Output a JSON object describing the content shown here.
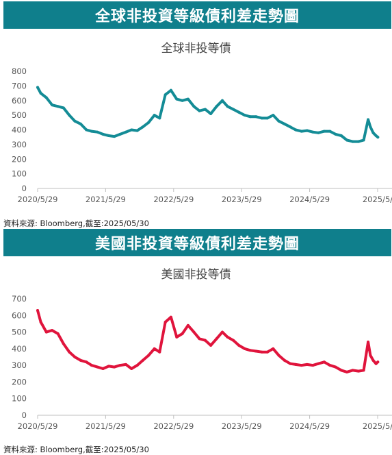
{
  "panels": [
    {
      "banner": "全球非投資等級債利差走勢圖",
      "source": "資料來源: Bloomberg,截至:2025/05/30",
      "chart_data": {
        "type": "line",
        "title": "全球非投等債",
        "xlabel": "",
        "ylabel": "",
        "ylim": [
          0,
          800
        ],
        "yticks": [
          0,
          100,
          200,
          300,
          400,
          500,
          600,
          700,
          800
        ],
        "grid": false,
        "legend": "none",
        "color": "#148c96",
        "xticklabels": [
          "2020/5/29",
          "2021/5/29",
          "2022/5/29",
          "2023/5/29",
          "2024/5/29",
          "2025/5/"
        ],
        "series": [
          {
            "x": [
              "2020-05-29",
              "2020-06-15",
              "2020-07-15",
              "2020-08-15",
              "2020-09-15",
              "2020-10-15",
              "2020-11-15",
              "2020-12-15",
              "2021-01-15",
              "2021-02-15",
              "2021-03-15",
              "2021-04-15",
              "2021-05-15",
              "2021-06-15",
              "2021-07-15",
              "2021-08-15",
              "2021-09-15",
              "2021-10-15",
              "2021-11-15",
              "2021-12-15",
              "2022-01-15",
              "2022-02-15",
              "2022-03-15",
              "2022-04-15",
              "2022-05-15",
              "2022-06-15",
              "2022-07-15",
              "2022-08-15",
              "2022-09-15",
              "2022-10-15",
              "2022-11-15",
              "2022-12-15",
              "2023-01-15",
              "2023-02-15",
              "2023-03-15",
              "2023-04-15",
              "2023-05-15",
              "2023-06-15",
              "2023-07-15",
              "2023-08-15",
              "2023-09-15",
              "2023-10-15",
              "2023-11-15",
              "2023-12-15",
              "2024-01-15",
              "2024-02-15",
              "2024-03-15",
              "2024-04-15",
              "2024-05-15",
              "2024-06-15",
              "2024-07-15",
              "2024-08-15",
              "2024-09-15",
              "2024-10-15",
              "2024-11-15",
              "2024-12-15",
              "2025-01-15",
              "2025-02-15",
              "2025-03-15",
              "2025-04-08",
              "2025-04-20",
              "2025-05-05",
              "2025-05-20",
              "2025-05-30"
            ],
            "y": [
              690,
              650,
              620,
              570,
              560,
              550,
              500,
              460,
              440,
              400,
              390,
              385,
              370,
              360,
              355,
              370,
              385,
              400,
              395,
              420,
              450,
              500,
              480,
              640,
              670,
              610,
              600,
              610,
              560,
              530,
              540,
              510,
              560,
              600,
              560,
              540,
              520,
              500,
              490,
              490,
              480,
              480,
              500,
              460,
              440,
              420,
              400,
              390,
              395,
              385,
              380,
              390,
              390,
              370,
              360,
              330,
              320,
              320,
              330,
              470,
              420,
              380,
              360,
              350
            ]
          }
        ]
      }
    },
    {
      "banner": "美國非投資等級債利差走勢圖",
      "source": "資料來源: Bloomberg,截至:2025/05/30",
      "chart_data": {
        "type": "line",
        "title": "美國非投等債",
        "xlabel": "",
        "ylabel": "",
        "ylim": [
          0,
          700
        ],
        "yticks": [
          0,
          100,
          200,
          300,
          400,
          500,
          600,
          700
        ],
        "grid": false,
        "legend": "none",
        "color": "#e0143c",
        "xticklabels": [
          "2020/5/29",
          "2021/5/29",
          "2022/5/29",
          "2023/5/29",
          "2024/5/29",
          "2025/5/"
        ],
        "series": [
          {
            "x": [
              "2020-05-29",
              "2020-06-15",
              "2020-07-15",
              "2020-08-15",
              "2020-09-15",
              "2020-10-15",
              "2020-11-15",
              "2020-12-15",
              "2021-01-15",
              "2021-02-15",
              "2021-03-15",
              "2021-04-15",
              "2021-05-15",
              "2021-06-15",
              "2021-07-15",
              "2021-08-15",
              "2021-09-15",
              "2021-10-15",
              "2021-11-15",
              "2021-12-15",
              "2022-01-15",
              "2022-02-15",
              "2022-03-15",
              "2022-04-15",
              "2022-05-15",
              "2022-06-15",
              "2022-07-15",
              "2022-08-15",
              "2022-09-15",
              "2022-10-15",
              "2022-11-15",
              "2022-12-15",
              "2023-01-15",
              "2023-02-15",
              "2023-03-15",
              "2023-04-15",
              "2023-05-15",
              "2023-06-15",
              "2023-07-15",
              "2023-08-15",
              "2023-09-15",
              "2023-10-15",
              "2023-11-15",
              "2023-12-15",
              "2024-01-15",
              "2024-02-15",
              "2024-03-15",
              "2024-04-15",
              "2024-05-15",
              "2024-06-15",
              "2024-07-15",
              "2024-08-15",
              "2024-09-15",
              "2024-10-15",
              "2024-11-15",
              "2024-12-15",
              "2025-01-15",
              "2025-02-15",
              "2025-03-15",
              "2025-04-08",
              "2025-04-20",
              "2025-05-05",
              "2025-05-20",
              "2025-05-30"
            ],
            "y": [
              630,
              560,
              500,
              510,
              490,
              430,
              380,
              350,
              330,
              320,
              300,
              290,
              280,
              295,
              290,
              300,
              305,
              280,
              300,
              330,
              360,
              400,
              380,
              560,
              590,
              470,
              490,
              540,
              500,
              460,
              450,
              420,
              460,
              500,
              470,
              450,
              420,
              400,
              390,
              385,
              380,
              380,
              400,
              360,
              330,
              310,
              305,
              300,
              305,
              300,
              310,
              320,
              300,
              290,
              270,
              260,
              270,
              265,
              270,
              440,
              360,
              330,
              310,
              320
            ]
          }
        ]
      }
    }
  ]
}
